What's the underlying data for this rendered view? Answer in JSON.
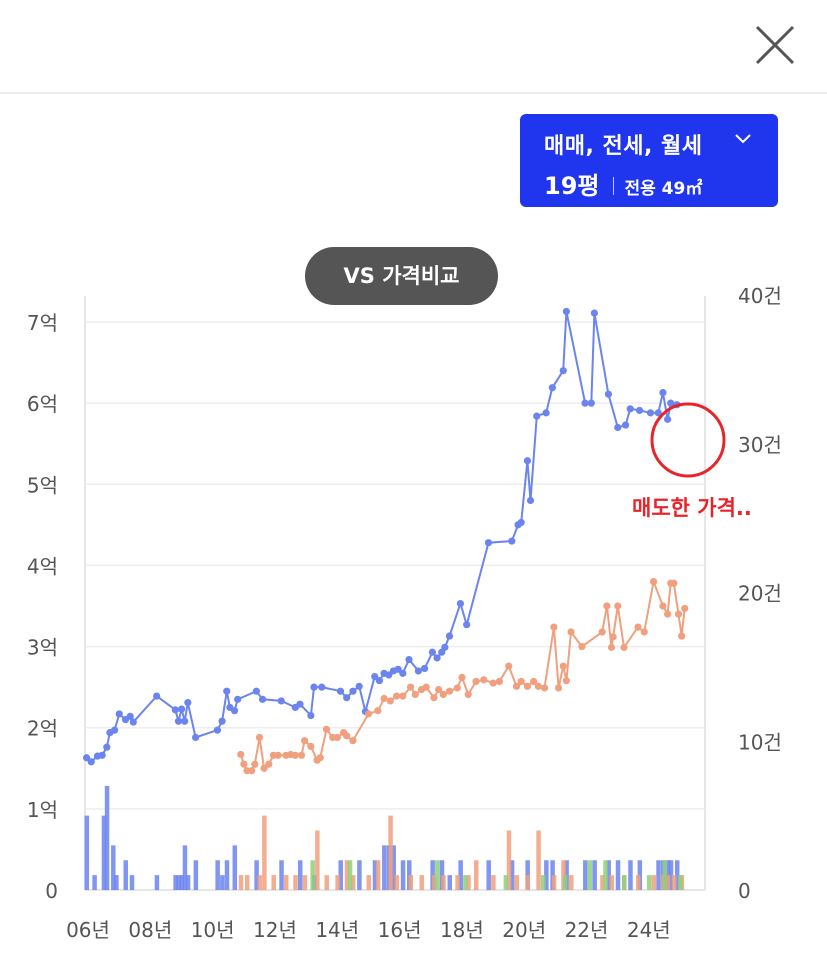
{
  "header": {
    "close_icon": "close-icon"
  },
  "filter": {
    "deal_types": "매매, 전세, 월세",
    "size": "19평",
    "area": "전용 49㎡",
    "chevron_icon": "chevron-down-icon",
    "color": "#1f36ee"
  },
  "vs_button": {
    "label": "VS 가격비교"
  },
  "annotation": {
    "text": "매도한 가격.."
  },
  "chart_data": {
    "type": "line",
    "y_left_ticks": [
      "0",
      "1억",
      "2억",
      "3억",
      "4억",
      "5억",
      "6억",
      "7억"
    ],
    "y_left_range": [
      0,
      7
    ],
    "y_right_ticks": [
      "0",
      "10건",
      "20건",
      "30건",
      "40건"
    ],
    "y_right_range": [
      0,
      40
    ],
    "x_ticks": [
      "06년",
      "08년",
      "10년",
      "12년",
      "14년",
      "16년",
      "18년",
      "20년",
      "22년",
      "24년"
    ],
    "x_range": [
      2006,
      2025.9
    ],
    "grid": true,
    "series": [
      {
        "color": "#6b84ee",
        "points": [
          [
            2006.05,
            1.63
          ],
          [
            2006.2,
            1.58
          ],
          [
            2006.4,
            1.65
          ],
          [
            2006.55,
            1.66
          ],
          [
            2006.7,
            1.76
          ],
          [
            2006.8,
            1.94
          ],
          [
            2006.95,
            1.97
          ],
          [
            2007.1,
            2.17
          ],
          [
            2007.3,
            2.1
          ],
          [
            2007.45,
            2.14
          ],
          [
            2007.55,
            2.07
          ],
          [
            2008.3,
            2.39
          ],
          [
            2008.9,
            2.22
          ],
          [
            2009.0,
            2.08
          ],
          [
            2009.1,
            2.23
          ],
          [
            2009.2,
            2.08
          ],
          [
            2009.3,
            2.31
          ],
          [
            2009.55,
            1.88
          ],
          [
            2010.25,
            1.97
          ],
          [
            2010.4,
            2.08
          ],
          [
            2010.55,
            2.45
          ],
          [
            2010.65,
            2.25
          ],
          [
            2010.8,
            2.21
          ],
          [
            2010.9,
            2.35
          ],
          [
            2011.5,
            2.45
          ],
          [
            2011.7,
            2.35
          ],
          [
            2012.3,
            2.33
          ],
          [
            2012.75,
            2.25
          ],
          [
            2012.9,
            2.29
          ],
          [
            2013.25,
            2.15
          ],
          [
            2013.35,
            2.5
          ],
          [
            2013.6,
            2.5
          ],
          [
            2014.2,
            2.45
          ],
          [
            2014.4,
            2.37
          ],
          [
            2014.6,
            2.45
          ],
          [
            2014.8,
            2.51
          ],
          [
            2015.0,
            2.2
          ],
          [
            2015.3,
            2.63
          ],
          [
            2015.45,
            2.58
          ],
          [
            2015.6,
            2.67
          ],
          [
            2015.75,
            2.65
          ],
          [
            2015.9,
            2.7
          ],
          [
            2016.05,
            2.72
          ],
          [
            2016.2,
            2.67
          ],
          [
            2016.4,
            2.84
          ],
          [
            2016.7,
            2.7
          ],
          [
            2016.9,
            2.73
          ],
          [
            2017.15,
            2.93
          ],
          [
            2017.3,
            2.86
          ],
          [
            2017.45,
            2.93
          ],
          [
            2017.55,
            2.99
          ],
          [
            2017.7,
            3.13
          ],
          [
            2018.05,
            3.53
          ],
          [
            2018.25,
            3.27
          ],
          [
            2018.95,
            4.28
          ],
          [
            2019.7,
            4.3
          ],
          [
            2019.9,
            4.5
          ],
          [
            2020.0,
            4.53
          ],
          [
            2020.2,
            5.29
          ],
          [
            2020.3,
            4.8
          ],
          [
            2020.5,
            5.84
          ],
          [
            2020.8,
            5.88
          ],
          [
            2021.0,
            6.19
          ],
          [
            2021.35,
            6.4
          ],
          [
            2021.45,
            7.13
          ],
          [
            2022.05,
            6.0
          ],
          [
            2022.25,
            6.0
          ],
          [
            2022.35,
            7.11
          ],
          [
            2022.8,
            6.11
          ],
          [
            2023.1,
            5.7
          ],
          [
            2023.35,
            5.73
          ],
          [
            2023.5,
            5.93
          ],
          [
            2023.8,
            5.91
          ],
          [
            2024.15,
            5.88
          ],
          [
            2024.4,
            5.88
          ],
          [
            2024.55,
            6.13
          ],
          [
            2024.7,
            5.8
          ],
          [
            2024.8,
            6.0
          ],
          [
            2025.0,
            5.98
          ]
        ]
      },
      {
        "color": "#f0a07e",
        "points": [
          [
            2011.0,
            1.67
          ],
          [
            2011.1,
            1.55
          ],
          [
            2011.2,
            1.47
          ],
          [
            2011.35,
            1.47
          ],
          [
            2011.45,
            1.55
          ],
          [
            2011.6,
            1.88
          ],
          [
            2011.75,
            1.5
          ],
          [
            2011.9,
            1.55
          ],
          [
            2012.05,
            1.66
          ],
          [
            2012.2,
            1.66
          ],
          [
            2012.45,
            1.66
          ],
          [
            2012.6,
            1.67
          ],
          [
            2012.75,
            1.66
          ],
          [
            2012.95,
            1.66
          ],
          [
            2013.05,
            1.84
          ],
          [
            2013.25,
            1.77
          ],
          [
            2013.45,
            1.6
          ],
          [
            2013.55,
            1.63
          ],
          [
            2013.75,
            1.98
          ],
          [
            2013.95,
            1.88
          ],
          [
            2014.1,
            1.88
          ],
          [
            2014.3,
            1.94
          ],
          [
            2014.4,
            1.9
          ],
          [
            2014.6,
            1.84
          ],
          [
            2015.1,
            2.17
          ],
          [
            2015.4,
            2.21
          ],
          [
            2015.6,
            2.36
          ],
          [
            2015.8,
            2.33
          ],
          [
            2016.0,
            2.39
          ],
          [
            2016.2,
            2.39
          ],
          [
            2016.45,
            2.5
          ],
          [
            2016.6,
            2.41
          ],
          [
            2016.8,
            2.47
          ],
          [
            2016.95,
            2.5
          ],
          [
            2017.2,
            2.37
          ],
          [
            2017.35,
            2.47
          ],
          [
            2017.5,
            2.41
          ],
          [
            2017.7,
            2.45
          ],
          [
            2017.95,
            2.49
          ],
          [
            2018.1,
            2.62
          ],
          [
            2018.3,
            2.41
          ],
          [
            2018.55,
            2.57
          ],
          [
            2018.8,
            2.59
          ],
          [
            2019.1,
            2.55
          ],
          [
            2019.3,
            2.57
          ],
          [
            2019.6,
            2.76
          ],
          [
            2019.85,
            2.51
          ],
          [
            2020.0,
            2.57
          ],
          [
            2020.2,
            2.51
          ],
          [
            2020.4,
            2.57
          ],
          [
            2020.55,
            2.51
          ],
          [
            2020.75,
            2.49
          ],
          [
            2021.05,
            3.24
          ],
          [
            2021.2,
            2.49
          ],
          [
            2021.35,
            2.76
          ],
          [
            2021.45,
            2.58
          ],
          [
            2021.6,
            3.18
          ],
          [
            2021.95,
            3.0
          ],
          [
            2022.6,
            3.18
          ],
          [
            2022.75,
            3.5
          ],
          [
            2022.9,
            2.99
          ],
          [
            2022.95,
            3.12
          ],
          [
            2023.1,
            3.5
          ],
          [
            2023.3,
            2.99
          ],
          [
            2023.75,
            3.24
          ],
          [
            2023.95,
            3.18
          ],
          [
            2024.25,
            3.8
          ],
          [
            2024.55,
            3.5
          ],
          [
            2024.7,
            3.4
          ],
          [
            2024.8,
            3.78
          ],
          [
            2024.9,
            3.78
          ],
          [
            2025.05,
            3.4
          ],
          [
            2025.15,
            3.13
          ],
          [
            2025.25,
            3.47
          ]
        ]
      }
    ],
    "volume_bars": [
      {
        "color": "#6b84ee",
        "bars": [
          [
            2006.05,
            5
          ],
          [
            2006.3,
            1
          ],
          [
            2006.6,
            5
          ],
          [
            2006.7,
            7
          ],
          [
            2006.9,
            3
          ],
          [
            2007.0,
            1
          ],
          [
            2007.3,
            2
          ],
          [
            2007.5,
            1
          ],
          [
            2008.3,
            1
          ],
          [
            2008.9,
            1
          ],
          [
            2009.0,
            1
          ],
          [
            2009.1,
            1
          ],
          [
            2009.2,
            3
          ],
          [
            2009.3,
            1
          ],
          [
            2009.55,
            2
          ],
          [
            2010.25,
            2
          ],
          [
            2010.4,
            1
          ],
          [
            2010.55,
            2
          ],
          [
            2010.8,
            3
          ],
          [
            2011.5,
            2
          ],
          [
            2012.3,
            2
          ],
          [
            2012.9,
            2
          ],
          [
            2013.35,
            1
          ],
          [
            2014.2,
            2
          ],
          [
            2014.8,
            2
          ],
          [
            2015.3,
            2
          ],
          [
            2015.6,
            3
          ],
          [
            2015.75,
            3
          ],
          [
            2015.9,
            3
          ],
          [
            2016.2,
            2
          ],
          [
            2016.4,
            2
          ],
          [
            2017.15,
            2
          ],
          [
            2017.45,
            2
          ],
          [
            2017.7,
            1
          ],
          [
            2018.05,
            2
          ],
          [
            2018.95,
            2
          ],
          [
            2019.7,
            2
          ],
          [
            2020.2,
            2
          ],
          [
            2020.8,
            2
          ],
          [
            2021.0,
            2
          ],
          [
            2021.45,
            2
          ],
          [
            2022.05,
            2
          ],
          [
            2022.35,
            2
          ],
          [
            2022.8,
            2
          ],
          [
            2023.1,
            2
          ],
          [
            2023.5,
            2
          ],
          [
            2023.8,
            2
          ],
          [
            2024.4,
            2
          ],
          [
            2024.55,
            2
          ],
          [
            2024.7,
            2
          ],
          [
            2024.8,
            2
          ],
          [
            2025.0,
            2
          ]
        ]
      },
      {
        "color": "#f0a07e",
        "bars": [
          [
            2011.0,
            1
          ],
          [
            2011.2,
            1
          ],
          [
            2011.6,
            1
          ],
          [
            2011.75,
            5
          ],
          [
            2012.05,
            1
          ],
          [
            2012.45,
            1
          ],
          [
            2012.75,
            1
          ],
          [
            2013.05,
            1
          ],
          [
            2013.45,
            4
          ],
          [
            2013.75,
            1
          ],
          [
            2014.1,
            1
          ],
          [
            2014.4,
            2
          ],
          [
            2014.6,
            1
          ],
          [
            2015.1,
            1
          ],
          [
            2015.4,
            2
          ],
          [
            2015.8,
            5
          ],
          [
            2016.0,
            1
          ],
          [
            2016.45,
            1
          ],
          [
            2016.8,
            1
          ],
          [
            2017.2,
            1
          ],
          [
            2017.5,
            1
          ],
          [
            2017.95,
            1
          ],
          [
            2018.3,
            1
          ],
          [
            2018.55,
            2
          ],
          [
            2019.1,
            1
          ],
          [
            2019.6,
            4
          ],
          [
            2019.85,
            1
          ],
          [
            2020.2,
            1
          ],
          [
            2020.55,
            4
          ],
          [
            2021.05,
            1
          ],
          [
            2021.35,
            2
          ],
          [
            2021.6,
            1
          ],
          [
            2022.6,
            1
          ],
          [
            2022.9,
            1
          ],
          [
            2023.3,
            1
          ],
          [
            2023.75,
            1
          ],
          [
            2024.25,
            1
          ],
          [
            2024.55,
            1
          ],
          [
            2024.7,
            1
          ],
          [
            2024.9,
            1
          ],
          [
            2025.15,
            1
          ]
        ]
      },
      {
        "color": "#8ed07a",
        "bars": [
          [
            2013.3,
            2
          ],
          [
            2014.5,
            2
          ],
          [
            2017.3,
            2
          ],
          [
            2018.2,
            1
          ],
          [
            2019.5,
            1
          ],
          [
            2020.7,
            1
          ],
          [
            2021.4,
            1
          ],
          [
            2022.2,
            2
          ],
          [
            2022.7,
            2
          ],
          [
            2023.3,
            1
          ],
          [
            2024.1,
            1
          ],
          [
            2024.6,
            2
          ],
          [
            2025.1,
            1
          ]
        ]
      }
    ]
  }
}
